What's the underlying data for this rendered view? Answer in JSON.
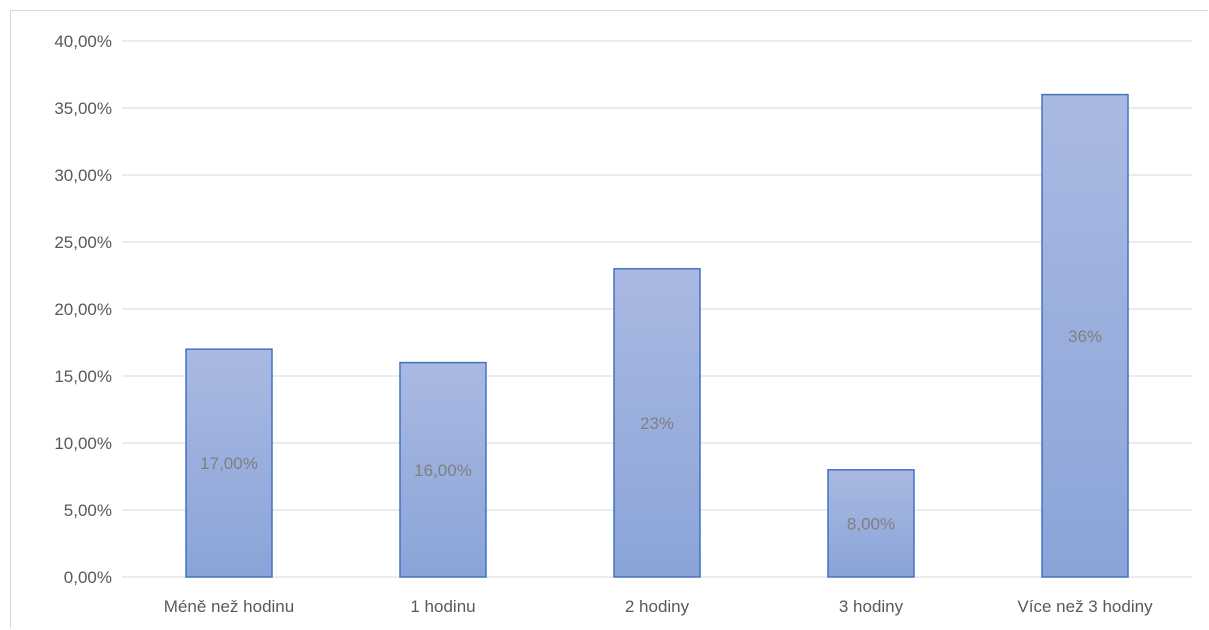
{
  "chart_data": {
    "type": "bar",
    "categories": [
      "Méně než hodinu",
      "1 hodinu",
      "2 hodiny",
      "3 hodiny",
      "Více než 3 hodiny"
    ],
    "values": [
      17,
      16,
      23,
      8,
      36
    ],
    "data_labels": [
      "17,00%",
      "16,00%",
      "23%",
      "8,00%",
      "36%"
    ],
    "y_ticks": [
      "0,00%",
      "5,00%",
      "10,00%",
      "15,00%",
      "20,00%",
      "25,00%",
      "30,00%",
      "35,00%",
      "40,00%"
    ],
    "ylim": [
      0,
      40
    ],
    "grid": true,
    "legend": "none",
    "title": "",
    "xlabel": "",
    "ylabel": "",
    "colors": {
      "bar_top": "#aab9e2",
      "bar_bottom": "#8aa4d8",
      "bar_border": "#4472c4",
      "grid": "#d9d9d9"
    }
  }
}
